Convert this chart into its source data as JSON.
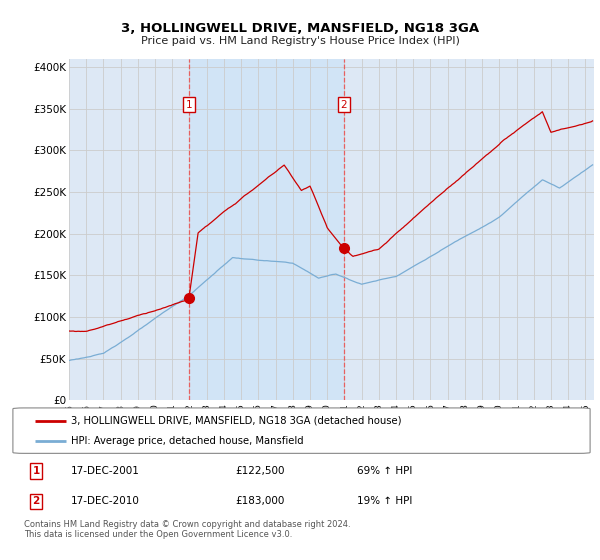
{
  "title": "3, HOLLINGWELL DRIVE, MANSFIELD, NG18 3GA",
  "subtitle": "Price paid vs. HM Land Registry's House Price Index (HPI)",
  "ylim": [
    0,
    410000
  ],
  "yticks": [
    0,
    50000,
    100000,
    150000,
    200000,
    250000,
    300000,
    350000,
    400000
  ],
  "ytick_labels": [
    "£0",
    "£50K",
    "£100K",
    "£150K",
    "£200K",
    "£250K",
    "£300K",
    "£350K",
    "£400K"
  ],
  "hpi_color": "#7aadd4",
  "price_color": "#cc0000",
  "vline_color": "#ee4444",
  "grid_color": "#cccccc",
  "bg_color": "#dde8f5",
  "plot_bg": "#ffffff",
  "shade_color": "#d0e4f7",
  "legend_label_red": "3, HOLLINGWELL DRIVE, MANSFIELD, NG18 3GA (detached house)",
  "legend_label_blue": "HPI: Average price, detached house, Mansfield",
  "sale1_date": "17-DEC-2001",
  "sale1_price": "£122,500",
  "sale1_info": "69% ↑ HPI",
  "sale2_date": "17-DEC-2010",
  "sale2_price": "£183,000",
  "sale2_info": "19% ↑ HPI",
  "footer": "Contains HM Land Registry data © Crown copyright and database right 2024.\nThis data is licensed under the Open Government Licence v3.0.",
  "sale1_year": 2001.96,
  "sale2_year": 2010.96,
  "sale1_val": 122500,
  "sale2_val": 183000,
  "xlim_start": 1995,
  "xlim_end": 2025.5
}
